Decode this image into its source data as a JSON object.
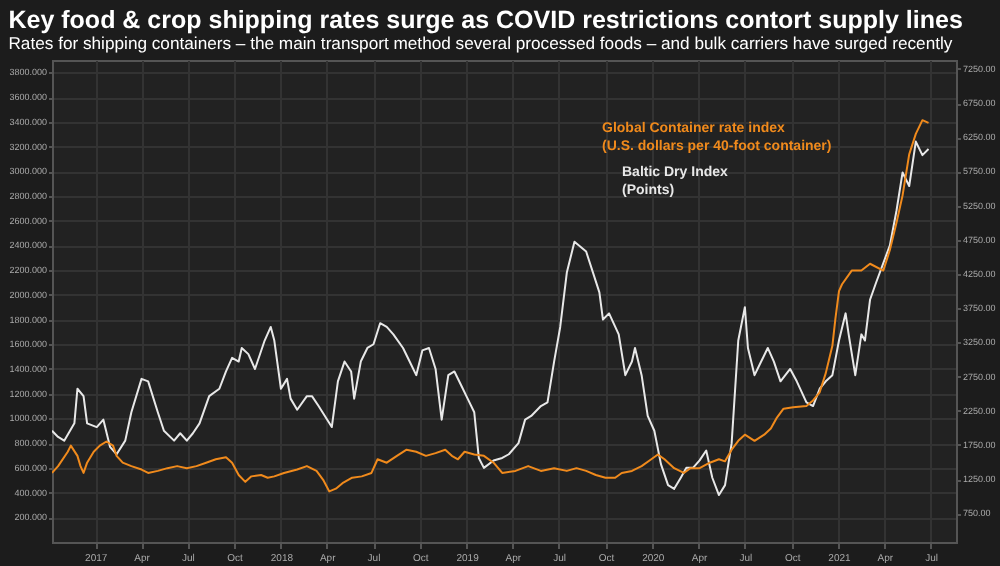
{
  "chart_data": {
    "type": "line",
    "title": "Key food & crop shipping rates surge as COVID restrictions contort supply lines",
    "subtitle": "Rates for shipping containers – the main transport method several processed foods – and bulk carriers have surged recently",
    "grid": true,
    "line_style": "solid",
    "marker": "none",
    "xlim": [
      "2016-10-08",
      "2021-08-20"
    ],
    "xticks": [
      {
        "value": "2017-01-01",
        "label": "2017"
      },
      {
        "value": "2017-04-01",
        "label": "Apr"
      },
      {
        "value": "2017-07-01",
        "label": "Jul"
      },
      {
        "value": "2017-10-01",
        "label": "Oct"
      },
      {
        "value": "2018-01-01",
        "label": "2018"
      },
      {
        "value": "2018-04-01",
        "label": "Apr"
      },
      {
        "value": "2018-07-01",
        "label": "Jul"
      },
      {
        "value": "2018-10-01",
        "label": "Oct"
      },
      {
        "value": "2019-01-01",
        "label": "2019"
      },
      {
        "value": "2019-04-01",
        "label": "Apr"
      },
      {
        "value": "2019-07-01",
        "label": "Jul"
      },
      {
        "value": "2019-10-01",
        "label": "Oct"
      },
      {
        "value": "2020-01-01",
        "label": "2020"
      },
      {
        "value": "2020-04-01",
        "label": "Apr"
      },
      {
        "value": "2020-07-01",
        "label": "Jul"
      },
      {
        "value": "2020-10-01",
        "label": "Oct"
      },
      {
        "value": "2021-01-01",
        "label": "2021"
      },
      {
        "value": "2021-04-01",
        "label": "Apr"
      },
      {
        "value": "2021-07-01",
        "label": "Jul"
      }
    ],
    "ylim": [
      0,
      3900
    ],
    "yticks": [
      {
        "value": 200,
        "label": "200.000"
      },
      {
        "value": 400,
        "label": "400.000"
      },
      {
        "value": 600,
        "label": "600.000"
      },
      {
        "value": 800,
        "label": "800.000"
      },
      {
        "value": 1000,
        "label": "1000.000"
      },
      {
        "value": 1200,
        "label": "1200.000"
      },
      {
        "value": 1400,
        "label": "1400.000"
      },
      {
        "value": 1600,
        "label": "1600.000"
      },
      {
        "value": 1800,
        "label": "1800.000"
      },
      {
        "value": 2000,
        "label": "2000.000"
      },
      {
        "value": 2200,
        "label": "2200.000"
      },
      {
        "value": 2400,
        "label": "2400.000"
      },
      {
        "value": 2600,
        "label": "2600.000"
      },
      {
        "value": 2800,
        "label": "2800.000"
      },
      {
        "value": 3000,
        "label": "3000.000"
      },
      {
        "value": 3200,
        "label": "3200.000"
      },
      {
        "value": 3400,
        "label": "3400.000"
      },
      {
        "value": 3600,
        "label": "3600.000"
      },
      {
        "value": 3800,
        "label": "3800.000"
      }
    ],
    "y2lim": [
      330,
      7380
    ],
    "y2ticks": [
      {
        "value": 750,
        "label": "750.00"
      },
      {
        "value": 1250,
        "label": "1250.00"
      },
      {
        "value": 1750,
        "label": "1750.00"
      },
      {
        "value": 2250,
        "label": "2250.00"
      },
      {
        "value": 2750,
        "label": "2750.00"
      },
      {
        "value": 3250,
        "label": "3250.00"
      },
      {
        "value": 3750,
        "label": "3750.00"
      },
      {
        "value": 4250,
        "label": "4250.00"
      },
      {
        "value": 4750,
        "label": "4750.00"
      },
      {
        "value": 5250,
        "label": "5250.00"
      },
      {
        "value": 5750,
        "label": "5750.00"
      },
      {
        "value": 6250,
        "label": "6250.00"
      },
      {
        "value": 6750,
        "label": "6750.00"
      },
      {
        "value": 7250,
        "label": "7250.00"
      }
    ],
    "series": [
      {
        "name": "Baltic Dry Index\n(Points)",
        "color": "#e8e8e8",
        "axis": "y",
        "x": [
          "2016-10-08",
          "2016-10-20",
          "2016-11-01",
          "2016-11-21",
          "2016-11-27",
          "2016-12-09",
          "2016-12-16",
          "2017-01-04",
          "2017-01-17",
          "2017-01-30",
          "2017-02-12",
          "2017-03-01",
          "2017-03-13",
          "2017-04-02",
          "2017-04-15",
          "2017-05-04",
          "2017-05-16",
          "2017-06-05",
          "2017-06-17",
          "2017-06-30",
          "2017-07-12",
          "2017-07-25",
          "2017-08-13",
          "2017-09-02",
          "2017-09-15",
          "2017-09-27",
          "2017-10-10",
          "2017-10-16",
          "2017-10-29",
          "2017-11-11",
          "2017-11-30",
          "2017-12-12",
          "2017-12-19",
          "2018-01-01",
          "2018-01-13",
          "2018-01-20",
          "2018-02-02",
          "2018-02-21",
          "2018-03-03",
          "2018-03-16",
          "2018-04-11",
          "2018-04-23",
          "2018-05-06",
          "2018-05-19",
          "2018-05-25",
          "2018-06-07",
          "2018-06-20",
          "2018-07-02",
          "2018-07-15",
          "2018-07-28",
          "2018-08-10",
          "2018-08-29",
          "2018-09-11",
          "2018-09-24",
          "2018-10-06",
          "2018-10-19",
          "2018-11-01",
          "2018-11-13",
          "2018-11-26",
          "2018-12-08",
          "2018-12-21",
          "2019-01-03",
          "2019-01-16",
          "2019-01-25",
          "2019-02-04",
          "2019-02-23",
          "2019-03-12",
          "2019-03-25",
          "2019-04-13",
          "2019-04-26",
          "2019-05-08",
          "2019-05-27",
          "2019-06-09",
          "2019-06-22",
          "2019-07-04",
          "2019-07-17",
          "2019-08-01",
          "2019-08-24",
          "2019-09-19",
          "2019-09-26",
          "2019-10-08",
          "2019-10-27",
          "2019-11-09",
          "2019-11-22",
          "2019-11-28",
          "2019-12-11",
          "2019-12-23",
          "2020-01-05",
          "2020-01-18",
          "2020-02-01",
          "2020-02-13",
          "2020-02-26",
          "2020-03-08",
          "2020-03-21",
          "2020-04-03",
          "2020-04-16",
          "2020-04-28",
          "2020-05-11",
          "2020-05-23",
          "2020-06-05",
          "2020-06-18",
          "2020-07-01",
          "2020-07-07",
          "2020-07-20",
          "2020-08-02",
          "2020-08-15",
          "2020-08-27",
          "2020-09-09",
          "2020-09-28",
          "2020-10-11",
          "2020-10-30",
          "2020-11-12",
          "2020-11-25",
          "2020-12-07",
          "2020-12-20",
          "2021-01-02",
          "2021-01-15",
          "2021-01-21",
          "2021-02-03",
          "2021-02-15",
          "2021-02-22",
          "2021-03-04",
          "2021-03-16",
          "2021-04-12",
          "2021-04-25",
          "2021-05-07",
          "2021-05-20",
          "2021-06-02",
          "2021-06-15",
          "2021-06-27"
        ],
        "values": [
          900,
          850,
          820,
          960,
          1240,
          1180,
          960,
          930,
          990,
          770,
          710,
          820,
          1050,
          1320,
          1300,
          1050,
          900,
          820,
          880,
          820,
          880,
          960,
          1180,
          1240,
          1380,
          1490,
          1460,
          1570,
          1520,
          1400,
          1630,
          1740,
          1630,
          1240,
          1320,
          1160,
          1070,
          1180,
          1180,
          1100,
          930,
          1300,
          1460,
          1380,
          1160,
          1460,
          1570,
          1600,
          1770,
          1740,
          1680,
          1570,
          1460,
          1350,
          1550,
          1570,
          1400,
          990,
          1350,
          1380,
          1270,
          1160,
          1050,
          680,
          600,
          660,
          680,
          710,
          800,
          990,
          1020,
          1100,
          1130,
          1460,
          1740,
          2180,
          2430,
          2350,
          2020,
          1800,
          1850,
          1680,
          1350,
          1460,
          1570,
          1350,
          1020,
          900,
          630,
          460,
          430,
          520,
          600,
          600,
          660,
          740,
          520,
          380,
          460,
          800,
          1630,
          1900,
          1570,
          1350,
          1460,
          1570,
          1460,
          1300,
          1400,
          1300,
          1130,
          1100,
          1240,
          1300,
          1350,
          1630,
          1850,
          1680,
          1350,
          1680,
          1630,
          1960,
          2100,
          2400,
          2680,
          2990,
          2880,
          3240,
          3130,
          3180
        ]
      },
      {
        "name": "Global Container rate index\n(U.S. dollars per 40-foot container)",
        "color": "#f08a1c",
        "axis": "y2",
        "x": [
          "2016-10-08",
          "2016-10-20",
          "2016-11-08",
          "2016-11-14",
          "2016-11-27",
          "2016-12-03",
          "2016-12-09",
          "2016-12-16",
          "2016-12-29",
          "2017-01-10",
          "2017-01-23",
          "2017-02-05",
          "2017-02-12",
          "2017-02-24",
          "2017-03-13",
          "2017-04-02",
          "2017-04-15",
          "2017-05-04",
          "2017-05-23",
          "2017-06-11",
          "2017-06-30",
          "2017-07-19",
          "2017-08-07",
          "2017-08-26",
          "2017-09-15",
          "2017-09-27",
          "2017-10-10",
          "2017-10-23",
          "2017-11-04",
          "2017-11-23",
          "2017-12-06",
          "2017-12-19",
          "2018-01-07",
          "2018-02-02",
          "2018-02-21",
          "2018-03-12",
          "2018-03-25",
          "2018-04-06",
          "2018-04-19",
          "2018-05-02",
          "2018-05-21",
          "2018-06-09",
          "2018-06-28",
          "2018-07-10",
          "2018-07-28",
          "2018-08-17",
          "2018-09-05",
          "2018-09-24",
          "2018-10-13",
          "2018-11-01",
          "2018-11-20",
          "2018-12-03",
          "2018-12-15",
          "2018-12-28",
          "2019-01-16",
          "2019-02-04",
          "2019-02-23",
          "2019-03-12",
          "2019-04-07",
          "2019-05-02",
          "2019-05-27",
          "2019-06-22",
          "2019-07-17",
          "2019-08-05",
          "2019-08-24",
          "2019-09-12",
          "2019-10-01",
          "2019-10-20",
          "2019-11-02",
          "2019-11-22",
          "2019-12-11",
          "2019-12-30",
          "2020-01-12",
          "2020-01-25",
          "2020-02-13",
          "2020-03-03",
          "2020-03-16",
          "2020-04-03",
          "2020-04-23",
          "2020-05-11",
          "2020-05-23",
          "2020-06-05",
          "2020-06-18",
          "2020-07-01",
          "2020-07-20",
          "2020-08-08",
          "2020-08-21",
          "2020-09-02",
          "2020-09-15",
          "2020-10-04",
          "2020-10-30",
          "2020-11-12",
          "2020-11-25",
          "2020-12-07",
          "2020-12-20",
          "2020-12-26",
          "2021-01-02",
          "2021-01-08",
          "2021-01-27",
          "2021-02-15",
          "2021-03-04",
          "2021-03-30",
          "2021-04-12",
          "2021-04-25",
          "2021-05-07",
          "2021-05-20",
          "2021-06-02",
          "2021-06-15",
          "2021-06-27"
        ],
        "values": [
          1340,
          1440,
          1650,
          1740,
          1590,
          1440,
          1340,
          1490,
          1650,
          1740,
          1800,
          1740,
          1590,
          1490,
          1440,
          1390,
          1340,
          1370,
          1410,
          1440,
          1410,
          1440,
          1490,
          1540,
          1570,
          1490,
          1310,
          1210,
          1290,
          1310,
          1270,
          1290,
          1340,
          1390,
          1440,
          1370,
          1240,
          1070,
          1110,
          1190,
          1270,
          1290,
          1340,
          1540,
          1490,
          1590,
          1680,
          1650,
          1590,
          1630,
          1680,
          1590,
          1540,
          1650,
          1610,
          1590,
          1490,
          1340,
          1370,
          1440,
          1370,
          1410,
          1370,
          1410,
          1370,
          1310,
          1270,
          1270,
          1340,
          1370,
          1440,
          1540,
          1610,
          1540,
          1410,
          1340,
          1410,
          1410,
          1490,
          1540,
          1510,
          1680,
          1810,
          1900,
          1810,
          1900,
          1990,
          2150,
          2280,
          2300,
          2320,
          2400,
          2520,
          2800,
          3200,
          3600,
          4000,
          4100,
          4300,
          4300,
          4400,
          4300,
          4600,
          5000,
          5400,
          6000,
          6300,
          6500,
          6460
        ]
      }
    ]
  }
}
